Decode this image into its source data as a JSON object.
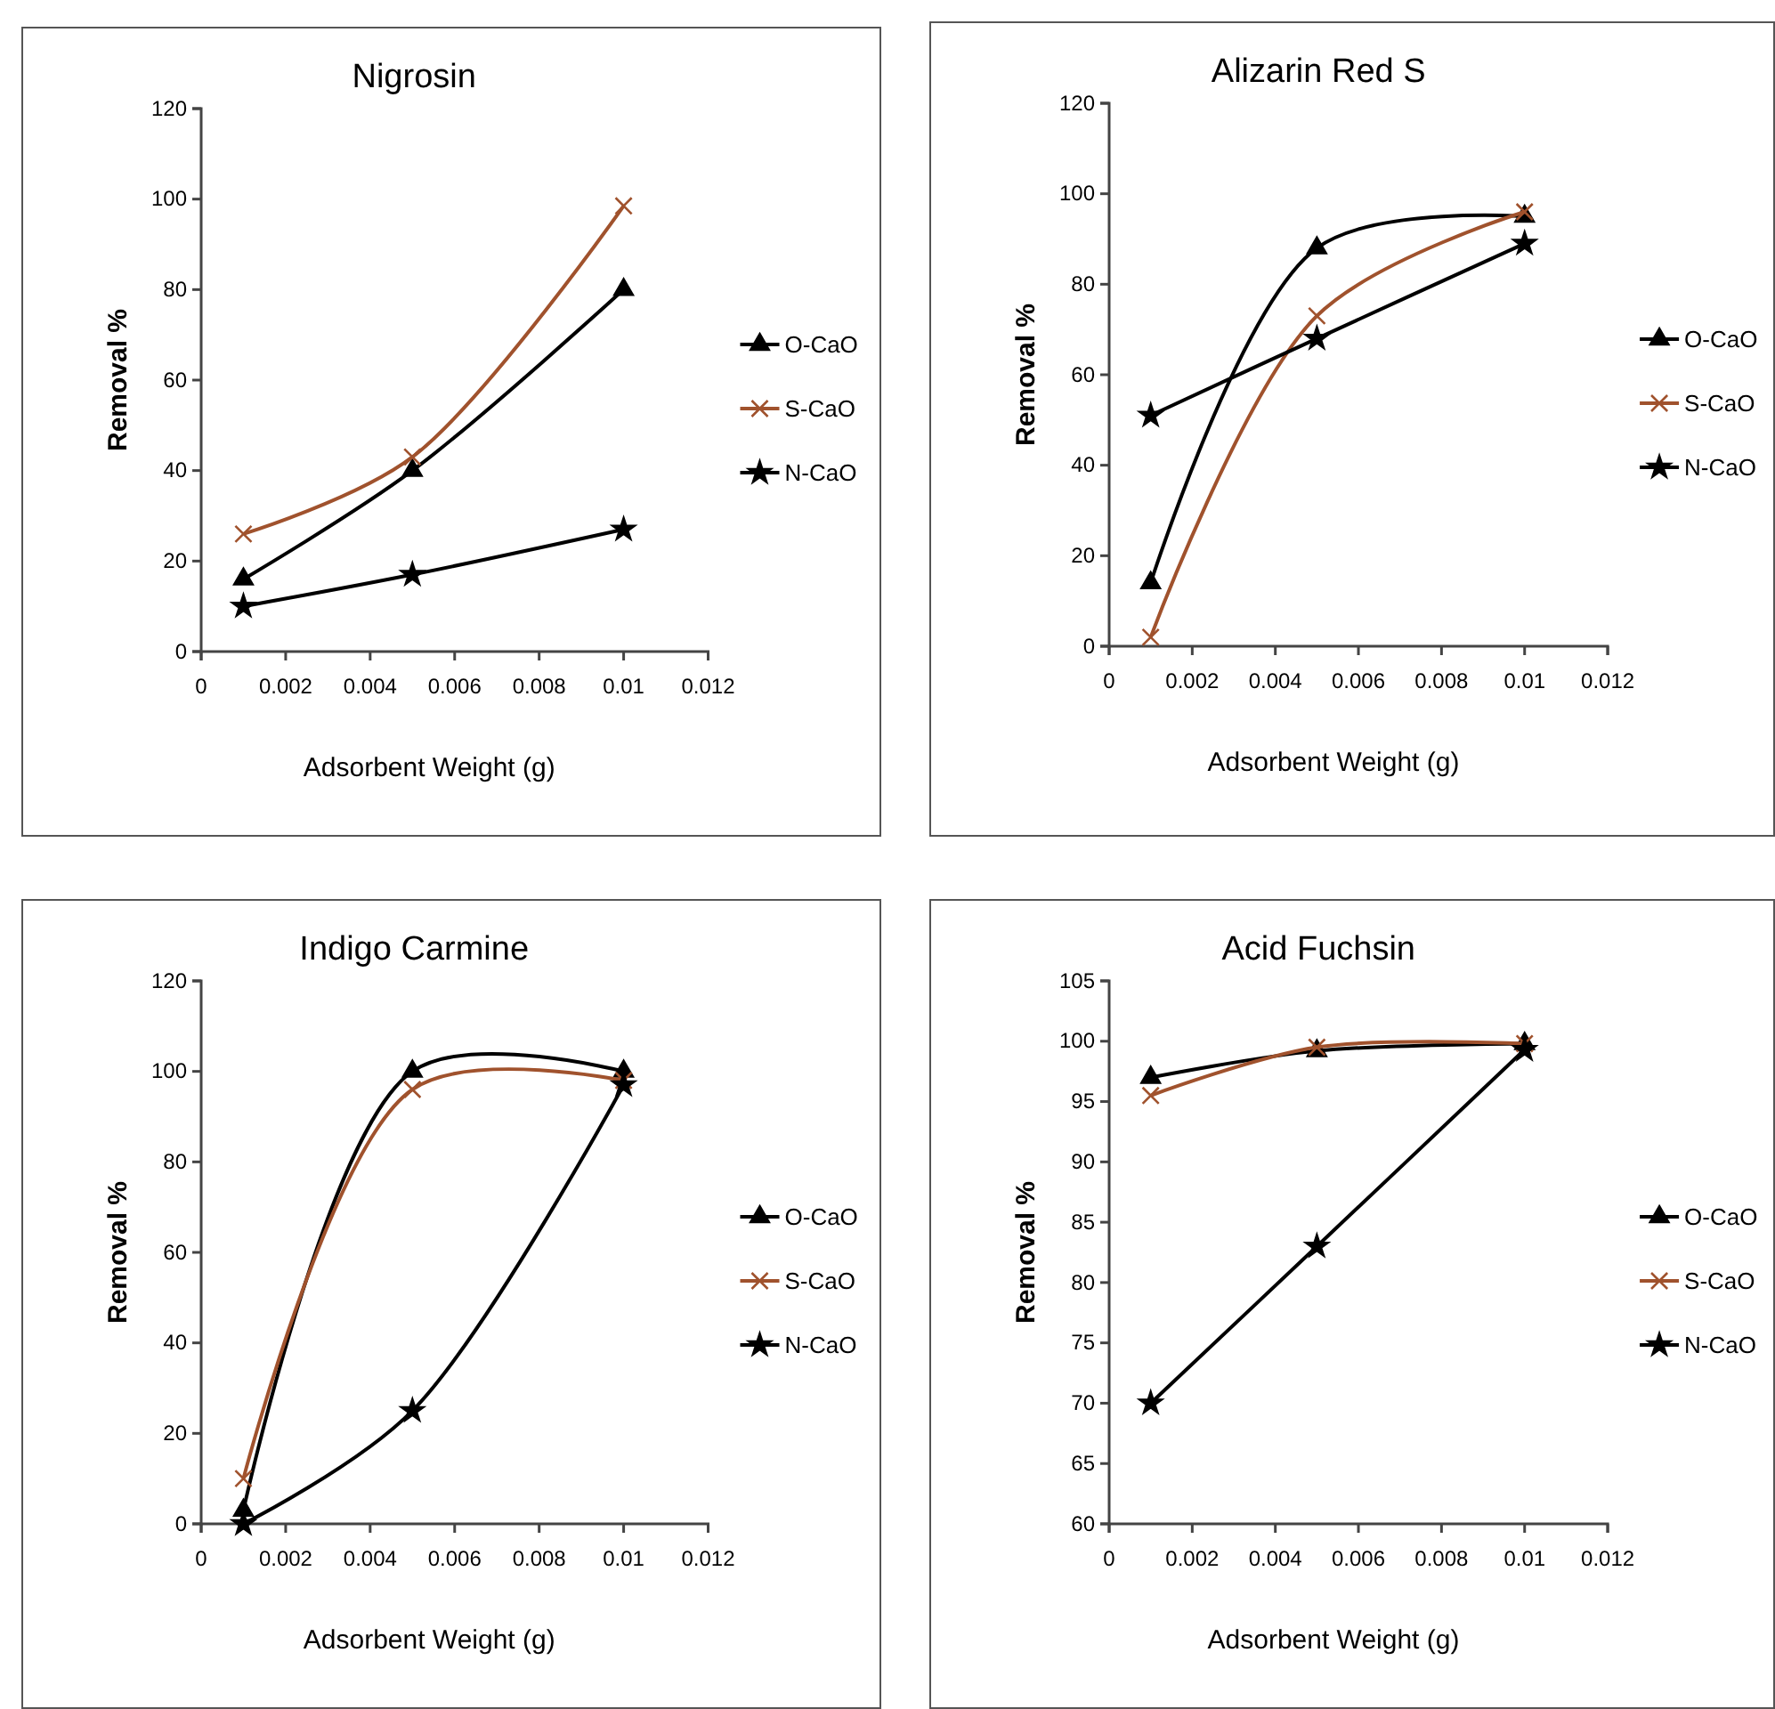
{
  "chart_data": [
    {
      "type": "line",
      "title": "Nigrosin",
      "xlabel": "Adsorbent Weight (g)",
      "ylabel": "Removal %",
      "x": [
        0.001,
        0.005,
        0.01
      ],
      "xlim": [
        0,
        0.012
      ],
      "xticks": [
        0,
        0.002,
        0.004,
        0.006,
        0.008,
        0.01,
        0.012
      ],
      "ylim": [
        0,
        120
      ],
      "yticks": [
        0,
        20,
        40,
        60,
        80,
        100,
        120
      ],
      "legend": "right",
      "grid": false,
      "series": [
        {
          "name": "O-CaO",
          "color": "#000000",
          "marker": "triangle",
          "values": [
            16,
            40,
            80
          ]
        },
        {
          "name": "S-CaO",
          "color": "#a0522d",
          "marker": "cross",
          "values": [
            26,
            43,
            98.5
          ]
        },
        {
          "name": "N-CaO",
          "color": "#000000",
          "marker": "star",
          "values": [
            10,
            17,
            27
          ]
        }
      ]
    },
    {
      "type": "line",
      "title": "Alizarin Red S",
      "xlabel": "Adsorbent Weight (g)",
      "ylabel": "Removal %",
      "x": [
        0.001,
        0.005,
        0.01
      ],
      "xlim": [
        0,
        0.012
      ],
      "xticks": [
        0,
        0.002,
        0.004,
        0.006,
        0.008,
        0.01,
        0.012
      ],
      "ylim": [
        0,
        120
      ],
      "yticks": [
        0,
        20,
        40,
        60,
        80,
        100,
        120
      ],
      "legend": "right",
      "grid": false,
      "series": [
        {
          "name": "O-CaO",
          "color": "#000000",
          "marker": "triangle",
          "values": [
            14,
            88,
            95
          ]
        },
        {
          "name": "S-CaO",
          "color": "#a0522d",
          "marker": "cross",
          "values": [
            2,
            73,
            96
          ]
        },
        {
          "name": "N-CaO",
          "color": "#000000",
          "marker": "star",
          "values": [
            51,
            68,
            89
          ]
        }
      ]
    },
    {
      "type": "line",
      "title": "Indigo Carmine",
      "xlabel": "Adsorbent Weight (g)",
      "ylabel": "Removal %",
      "x": [
        0.001,
        0.005,
        0.01
      ],
      "xlim": [
        0,
        0.012
      ],
      "xticks": [
        0,
        0.002,
        0.004,
        0.006,
        0.008,
        0.01,
        0.012
      ],
      "ylim": [
        0,
        120
      ],
      "yticks": [
        0,
        20,
        40,
        60,
        80,
        100,
        120
      ],
      "legend": "right",
      "grid": false,
      "series": [
        {
          "name": "O-CaO",
          "color": "#000000",
          "marker": "triangle",
          "values": [
            3,
            100,
            100
          ]
        },
        {
          "name": "S-CaO",
          "color": "#a0522d",
          "marker": "cross",
          "values": [
            10,
            96,
            98
          ]
        },
        {
          "name": "N-CaO",
          "color": "#000000",
          "marker": "star",
          "values": [
            0,
            25,
            97
          ]
        }
      ]
    },
    {
      "type": "line",
      "title": "Acid Fuchsin",
      "xlabel": "Adsorbent Weight (g)",
      "ylabel": "Removal %",
      "x": [
        0.001,
        0.005,
        0.01
      ],
      "xlim": [
        0,
        0.012
      ],
      "xticks": [
        0,
        0.002,
        0.004,
        0.006,
        0.008,
        0.01,
        0.012
      ],
      "ylim": [
        60,
        105
      ],
      "yticks": [
        60,
        65,
        70,
        75,
        80,
        85,
        90,
        95,
        100,
        105
      ],
      "legend": "right",
      "grid": false,
      "series": [
        {
          "name": "O-CaO",
          "color": "#000000",
          "marker": "triangle",
          "values": [
            97,
            99.2,
            99.8
          ]
        },
        {
          "name": "S-CaO",
          "color": "#a0522d",
          "marker": "cross",
          "values": [
            95.5,
            99.5,
            99.8
          ]
        },
        {
          "name": "N-CaO",
          "color": "#000000",
          "marker": "star",
          "values": [
            70,
            83,
            99.3
          ]
        }
      ]
    }
  ]
}
